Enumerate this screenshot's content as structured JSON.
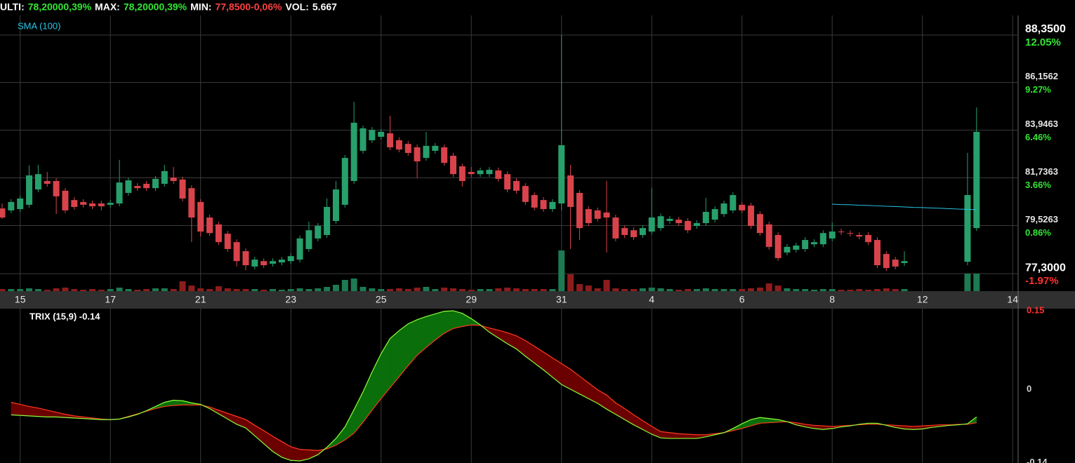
{
  "chart_data": [
    {
      "type": "candlestick",
      "header": [
        {
          "label": "ULTI:",
          "color": "#ffffff"
        },
        {
          "label": "78,20000,39%",
          "color": "#33e633"
        },
        {
          "label": "MAX:",
          "color": "#ffffff"
        },
        {
          "label": "78,20000,39%",
          "color": "#33e633"
        },
        {
          "label": "MIN:",
          "color": "#ffffff"
        },
        {
          "label": "77,8500-0,06%",
          "color": "#ff4040"
        },
        {
          "label": "VOL:",
          "color": "#ffffff"
        },
        {
          "label": "5.667",
          "color": "#ffffff"
        }
      ],
      "categories": [
        null,
        null,
        "15",
        null,
        null,
        null,
        null,
        null,
        null,
        null,
        null,
        null,
        "17",
        null,
        null,
        null,
        null,
        null,
        null,
        null,
        null,
        null,
        "21",
        null,
        null,
        null,
        null,
        null,
        null,
        null,
        null,
        null,
        "23",
        null,
        null,
        null,
        null,
        null,
        null,
        null,
        null,
        null,
        "25",
        null,
        null,
        null,
        null,
        null,
        null,
        null,
        null,
        null,
        "29",
        null,
        null,
        null,
        null,
        null,
        null,
        null,
        null,
        null,
        "31",
        null,
        null,
        null,
        null,
        null,
        null,
        null,
        null,
        null,
        "4",
        null,
        null,
        null,
        null,
        null,
        null,
        null,
        null,
        null,
        "6",
        null,
        null,
        null,
        null,
        null,
        null,
        null,
        null,
        null,
        "8",
        null,
        null,
        null,
        null,
        null,
        null,
        null,
        null,
        null,
        "12",
        null,
        null,
        null,
        null,
        null,
        null,
        null,
        null,
        null,
        "14"
      ],
      "open": [
        80.32,
        80.23,
        80.29,
        80.49,
        81.2,
        81.59,
        81.59,
        81.14,
        80.71,
        80.62,
        80.55,
        80.55,
        80.49,
        80.55,
        81.04,
        81.36,
        81.46,
        81.26,
        81.46,
        81.75,
        81.66,
        81.26,
        80.62,
        79.9,
        79.58,
        79.15,
        78.76,
        78.34,
        77.63,
        77.88,
        77.76,
        77.82,
        77.88,
        77.95,
        78.44,
        78.93,
        79.09,
        79.74,
        80.49,
        81.59,
        82.99,
        83.48,
        83.64,
        83.8,
        83.48,
        83.31,
        83.15,
        82.66,
        82.99,
        83.15,
        82.76,
        82.27,
        82.01,
        81.91,
        81.91,
        82.08,
        81.91,
        81.59,
        81.36,
        80.94,
        80.71,
        80.29,
        80.55,
        81.85,
        81.04,
        80.29,
        80.23,
        80.13,
        79.9,
        79.41,
        79.31,
        79.09,
        79.25,
        79.41,
        79.74,
        79.8,
        79.74,
        79.51,
        79.64,
        79.8,
        80.06,
        80.23,
        80.49,
        80.45,
        80.06,
        79.58,
        79.09,
        78.28,
        78.41,
        78.44,
        78.66,
        78.66,
        78.93,
        79.25,
        79.18,
        79.09,
        79.09,
        78.86,
        78.21,
        77.95,
        77.79,
        null,
        null,
        null,
        null,
        null,
        null,
        77.85,
        79.41,
        null,
        null,
        null,
        null
      ],
      "high": [
        80.55,
        80.75,
        80.91,
        82.31,
        82.34,
        82.01,
        81.72,
        81.27,
        80.84,
        80.75,
        80.68,
        80.68,
        80.71,
        82.57,
        81.75,
        81.49,
        81.59,
        81.82,
        82.34,
        82.24,
        81.79,
        81.39,
        80.75,
        80.03,
        79.71,
        79.28,
        78.89,
        78.47,
        78.08,
        78.01,
        78.01,
        78.08,
        78.24,
        79.06,
        79.71,
        79.64,
        80.78,
        81.59,
        82.79,
        85.26,
        84.16,
        84.09,
        84.0,
        84.61,
        83.61,
        83.44,
        83.28,
        83.87,
        83.35,
        83.28,
        82.89,
        82.4,
        82.24,
        82.21,
        82.24,
        82.21,
        82.04,
        81.72,
        81.49,
        81.07,
        80.84,
        80.75,
        88.35,
        82.34,
        81.17,
        80.42,
        80.36,
        81.59,
        80.03,
        79.54,
        79.44,
        79.54,
        81.27,
        80.09,
        79.97,
        79.93,
        79.87,
        79.77,
        80.81,
        80.42,
        80.68,
        81.07,
        80.62,
        80.58,
        80.19,
        79.71,
        79.22,
        78.67,
        78.73,
        78.99,
        78.89,
        79.31,
        79.67,
        79.38,
        79.31,
        79.22,
        79.22,
        78.99,
        78.34,
        78.08,
        78.34,
        null,
        null,
        null,
        null,
        null,
        null,
        82.89,
        85.0,
        null,
        null,
        null,
        null
      ],
      "low": [
        79.84,
        80.1,
        80.16,
        80.36,
        81.07,
        81.33,
        80.06,
        80.1,
        80.26,
        80.36,
        80.29,
        80.23,
        80.36,
        80.42,
        80.91,
        81.13,
        81.13,
        81.13,
        81.33,
        81.46,
        80.65,
        78.76,
        79.02,
        79.05,
        78.63,
        78.31,
        77.63,
        77.46,
        77.5,
        77.56,
        77.63,
        77.69,
        77.75,
        77.82,
        78.31,
        78.8,
        78.96,
        79.61,
        80.36,
        81.46,
        82.86,
        83.35,
        83.51,
        83.02,
        82.92,
        82.76,
        81.72,
        82.53,
        82.86,
        82.3,
        81.78,
        81.33,
        81.78,
        81.78,
        81.78,
        81.56,
        81.07,
        81.01,
        80.49,
        80.23,
        80.16,
        80.16,
        80.23,
        78.44,
        78.86,
        79.51,
        79.71,
        78.28,
        78.8,
        78.96,
        78.86,
        78.96,
        79.12,
        79.28,
        79.61,
        79.51,
        79.18,
        79.38,
        79.51,
        79.67,
        79.93,
        80.1,
        80.1,
        79.38,
        79.05,
        78.41,
        77.89,
        78.15,
        78.28,
        78.31,
        78.53,
        78.53,
        78.8,
        79.09,
        79.02,
        78.89,
        78.63,
        77.56,
        77.43,
        77.5,
        77.66,
        null,
        null,
        null,
        null,
        null,
        null,
        77.69,
        79.28,
        null,
        null,
        null,
        null
      ],
      "close": [
        79.9,
        80.62,
        80.78,
        81.85,
        81.91,
        81.46,
        80.88,
        80.23,
        80.39,
        80.49,
        80.42,
        80.42,
        80.58,
        81.52,
        81.62,
        81.26,
        81.26,
        81.69,
        82.05,
        81.59,
        80.78,
        79.9,
        79.25,
        79.18,
        78.76,
        78.44,
        77.88,
        77.69,
        77.95,
        77.69,
        77.88,
        77.95,
        78.11,
        78.93,
        79.31,
        79.51,
        80.39,
        81.2,
        82.66,
        84.29,
        84.03,
        83.96,
        83.87,
        83.15,
        83.05,
        82.89,
        82.5,
        83.22,
        83.22,
        82.43,
        81.91,
        81.59,
        81.91,
        82.08,
        82.11,
        81.69,
        81.2,
        81.14,
        80.62,
        80.36,
        80.29,
        80.62,
        83.25,
        80.39,
        79.41,
        79.64,
        79.84,
        79.9,
        78.93,
        79.09,
        78.99,
        79.41,
        79.9,
        79.96,
        79.84,
        79.64,
        79.31,
        79.64,
        80.16,
        80.29,
        80.55,
        80.94,
        80.23,
        79.51,
        79.18,
        78.54,
        78.02,
        78.54,
        78.6,
        78.86,
        78.76,
        79.18,
        79.25,
        79.22,
        79.15,
        79.02,
        78.76,
        77.69,
        77.56,
        77.63,
        77.88,
        null,
        null,
        null,
        null,
        null,
        null,
        80.94,
        83.87,
        null,
        null,
        null,
        null
      ],
      "volume": [
        3,
        3,
        3,
        4,
        3,
        2,
        4,
        5,
        3,
        2,
        3,
        2,
        3,
        5,
        3,
        2,
        3,
        4,
        4,
        3,
        14,
        8,
        4,
        3,
        7,
        4,
        3,
        3,
        3,
        2,
        3,
        2,
        3,
        4,
        3,
        4,
        6,
        9,
        16,
        18,
        6,
        4,
        3,
        3,
        4,
        3,
        5,
        6,
        3,
        5,
        4,
        3,
        2,
        3,
        3,
        4,
        5,
        4,
        3,
        3,
        3,
        3,
        58,
        24,
        10,
        8,
        4,
        16,
        4,
        3,
        3,
        4,
        5,
        4,
        3,
        2,
        3,
        3,
        4,
        3,
        3,
        3,
        3,
        4,
        5,
        11,
        8,
        4,
        3,
        3,
        2,
        3,
        3,
        2,
        2,
        3,
        2,
        3,
        4,
        3,
        3,
        null,
        null,
        null,
        null,
        null,
        null,
        25,
        25,
        null,
        null,
        null,
        null
      ],
      "sma": {
        "name": "SMA (100)",
        "color": "#29c5e6",
        "values": [
          null,
          null,
          null,
          null,
          null,
          null,
          null,
          null,
          null,
          null,
          null,
          null,
          null,
          null,
          null,
          null,
          null,
          null,
          null,
          null,
          null,
          null,
          null,
          null,
          null,
          null,
          null,
          null,
          null,
          null,
          null,
          null,
          null,
          null,
          null,
          null,
          null,
          null,
          null,
          null,
          null,
          null,
          null,
          null,
          null,
          null,
          null,
          null,
          null,
          null,
          null,
          null,
          null,
          null,
          null,
          null,
          null,
          null,
          null,
          null,
          null,
          null,
          null,
          null,
          null,
          null,
          null,
          null,
          null,
          null,
          null,
          null,
          null,
          null,
          null,
          null,
          null,
          null,
          null,
          null,
          null,
          null,
          null,
          null,
          null,
          null,
          null,
          null,
          null,
          null,
          null,
          null,
          80.52,
          80.5,
          80.49,
          80.47,
          80.46,
          80.44,
          80.42,
          80.41,
          80.39,
          80.37,
          80.36,
          80.34,
          80.33,
          80.31,
          80.29,
          80.28,
          80.26,
          null,
          null,
          null,
          null
        ]
      },
      "up_color": "#27a06c",
      "down_color": "#d9434b",
      "volume_up_color": "#1d7a52",
      "volume_down_color": "#8e1c1c",
      "ylim": [
        76.49,
        89.26
      ],
      "yticks": [
        {
          "value": 88.35,
          "label": "88,3500"
        },
        {
          "value": 86.1562,
          "label": "86,1562"
        },
        {
          "value": 83.9463,
          "label": "83,9463"
        },
        {
          "value": 81.7363,
          "label": "81,7363"
        },
        {
          "value": 79.5263,
          "label": "79,5263"
        },
        {
          "value": 77.3,
          "label": "77,3000"
        }
      ],
      "y2lim": [
        -2.99,
        13.2
      ],
      "y2ticks": [
        {
          "value": 12.05,
          "label": "12.05%"
        },
        {
          "value": 9.27,
          "label": "9.27%"
        },
        {
          "value": 6.46,
          "label": "6.46%"
        },
        {
          "value": 3.66,
          "label": "3.66%"
        },
        {
          "value": 0.86,
          "label": "0.86%"
        },
        {
          "value": -1.97,
          "label": "-1.97%"
        }
      ],
      "vlim": [
        0,
        60
      ],
      "grid": true
    },
    {
      "type": "line",
      "title": "TRIX (15,9) -0.14",
      "series": [
        {
          "color": "#8cff3a",
          "values": [
            null,
            -0.046,
            -0.047,
            -0.048,
            -0.049,
            -0.05,
            -0.05,
            -0.051,
            -0.052,
            -0.053,
            -0.054,
            -0.055,
            -0.055,
            -0.054,
            -0.05,
            -0.045,
            -0.038,
            -0.03,
            -0.022,
            -0.018,
            -0.019,
            -0.023,
            -0.026,
            -0.034,
            -0.044,
            -0.054,
            -0.064,
            -0.071,
            -0.086,
            -0.101,
            -0.116,
            -0.127,
            -0.133,
            -0.134,
            -0.13,
            -0.122,
            -0.108,
            -0.091,
            -0.069,
            -0.036,
            -0.002,
            0.036,
            0.071,
            0.1,
            0.115,
            0.128,
            0.136,
            0.142,
            0.147,
            0.152,
            0.153,
            0.148,
            0.138,
            0.126,
            0.112,
            0.101,
            0.09,
            0.08,
            0.066,
            0.053,
            0.04,
            0.026,
            0.012,
            0.003,
            -0.006,
            -0.015,
            -0.024,
            -0.035,
            -0.045,
            -0.055,
            -0.065,
            -0.074,
            -0.083,
            -0.09,
            -0.091,
            -0.091,
            -0.091,
            -0.091,
            -0.088,
            -0.084,
            -0.08,
            -0.072,
            -0.063,
            -0.055,
            -0.051,
            -0.053,
            -0.055,
            -0.059,
            -0.065,
            -0.069,
            -0.072,
            -0.074,
            -0.072,
            -0.069,
            -0.067,
            -0.064,
            -0.062,
            -0.062,
            -0.066,
            -0.07,
            -0.073,
            -0.074,
            -0.073,
            -0.07,
            -0.068,
            -0.066,
            -0.065,
            -0.063,
            -0.05,
            null,
            null,
            null,
            null
          ]
        },
        {
          "color": "#ff3b1e",
          "values": [
            null,
            -0.022,
            -0.026,
            -0.03,
            -0.033,
            -0.037,
            -0.041,
            -0.045,
            -0.048,
            -0.05,
            -0.052,
            -0.054,
            -0.055,
            -0.054,
            -0.049,
            -0.044,
            -0.039,
            -0.034,
            -0.03,
            -0.028,
            -0.027,
            -0.027,
            -0.027,
            -0.031,
            -0.037,
            -0.043,
            -0.049,
            -0.055,
            -0.066,
            -0.076,
            -0.087,
            -0.097,
            -0.107,
            -0.112,
            -0.113,
            -0.114,
            -0.111,
            -0.104,
            -0.094,
            -0.081,
            -0.06,
            -0.037,
            -0.015,
            0.006,
            0.027,
            0.048,
            0.068,
            0.083,
            0.097,
            0.11,
            0.119,
            0.123,
            0.126,
            0.125,
            0.12,
            0.116,
            0.111,
            0.105,
            0.096,
            0.085,
            0.074,
            0.063,
            0.052,
            0.041,
            0.028,
            0.015,
            0.002,
            -0.008,
            -0.023,
            -0.034,
            -0.046,
            -0.057,
            -0.068,
            -0.078,
            -0.08,
            -0.082,
            -0.083,
            -0.084,
            -0.084,
            -0.082,
            -0.08,
            -0.076,
            -0.072,
            -0.067,
            -0.062,
            -0.061,
            -0.06,
            -0.059,
            -0.061,
            -0.064,
            -0.066,
            -0.067,
            -0.068,
            -0.067,
            -0.066,
            -0.065,
            -0.064,
            -0.064,
            -0.065,
            -0.066,
            -0.067,
            -0.068,
            -0.067,
            -0.066,
            -0.065,
            -0.065,
            -0.064,
            -0.064,
            -0.061,
            null,
            null,
            null,
            null
          ]
        }
      ],
      "fill_up": "#0a6e0a",
      "fill_down": "#6b0000",
      "ylim": [
        -0.138,
        0.157
      ],
      "yticks": [
        0.15,
        0,
        -0.14
      ]
    }
  ]
}
